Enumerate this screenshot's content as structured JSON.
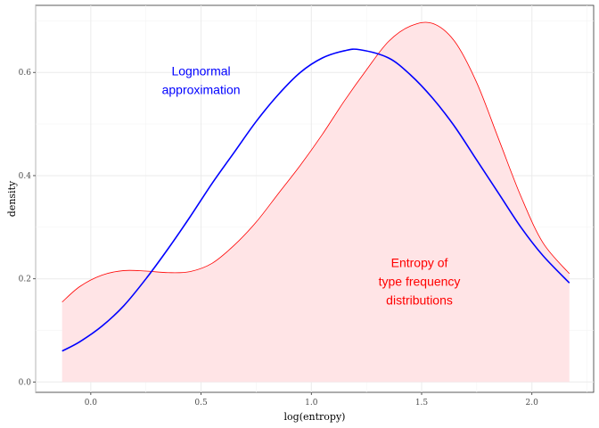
{
  "chart_data": {
    "type": "area",
    "xlabel": "log(entropy)",
    "ylabel": "density",
    "xlim": [
      -0.25,
      2.28
    ],
    "ylim": [
      -0.02,
      0.73
    ],
    "x_ticks": [
      0.0,
      0.5,
      1.0,
      1.5,
      2.0
    ],
    "x_tick_labels": [
      "0.0",
      "0.5",
      "1.0",
      "1.5",
      "2.0"
    ],
    "y_ticks": [
      0.0,
      0.2,
      0.4,
      0.6
    ],
    "y_tick_labels": [
      "0.0",
      "0.2",
      "0.4",
      "0.6"
    ],
    "grid": true,
    "series": [
      {
        "style": "filled-density",
        "color": "#ff0000",
        "fill": "#ffe4e6",
        "x": [
          -0.13,
          -0.05,
          0.05,
          0.15,
          0.25,
          0.35,
          0.45,
          0.55,
          0.65,
          0.75,
          0.85,
          0.95,
          1.05,
          1.15,
          1.25,
          1.35,
          1.45,
          1.55,
          1.65,
          1.75,
          1.85,
          1.95,
          2.05,
          2.17
        ],
        "y": [
          0.155,
          0.185,
          0.207,
          0.216,
          0.215,
          0.212,
          0.214,
          0.23,
          0.265,
          0.31,
          0.365,
          0.42,
          0.48,
          0.545,
          0.605,
          0.66,
          0.69,
          0.695,
          0.66,
          0.58,
          0.47,
          0.36,
          0.27,
          0.21
        ]
      },
      {
        "style": "line",
        "color": "#0000ff",
        "x": [
          -0.13,
          -0.05,
          0.05,
          0.15,
          0.25,
          0.35,
          0.45,
          0.55,
          0.65,
          0.75,
          0.85,
          0.95,
          1.05,
          1.15,
          1.22,
          1.35,
          1.45,
          1.55,
          1.65,
          1.75,
          1.85,
          1.95,
          2.05,
          2.17
        ],
        "y": [
          0.06,
          0.078,
          0.108,
          0.148,
          0.2,
          0.258,
          0.32,
          0.385,
          0.445,
          0.505,
          0.557,
          0.6,
          0.628,
          0.642,
          0.644,
          0.628,
          0.595,
          0.55,
          0.495,
          0.43,
          0.365,
          0.3,
          0.245,
          0.192
        ]
      }
    ],
    "annotations": [
      {
        "lines": [
          "Lognormal",
          "approximation"
        ],
        "x": 0.5,
        "y": 0.585,
        "color": "#0000ff"
      },
      {
        "lines": [
          "Entropy of",
          "type frequency",
          "distributions"
        ],
        "x": 1.49,
        "y": 0.195,
        "color": "#ff0000"
      }
    ]
  }
}
